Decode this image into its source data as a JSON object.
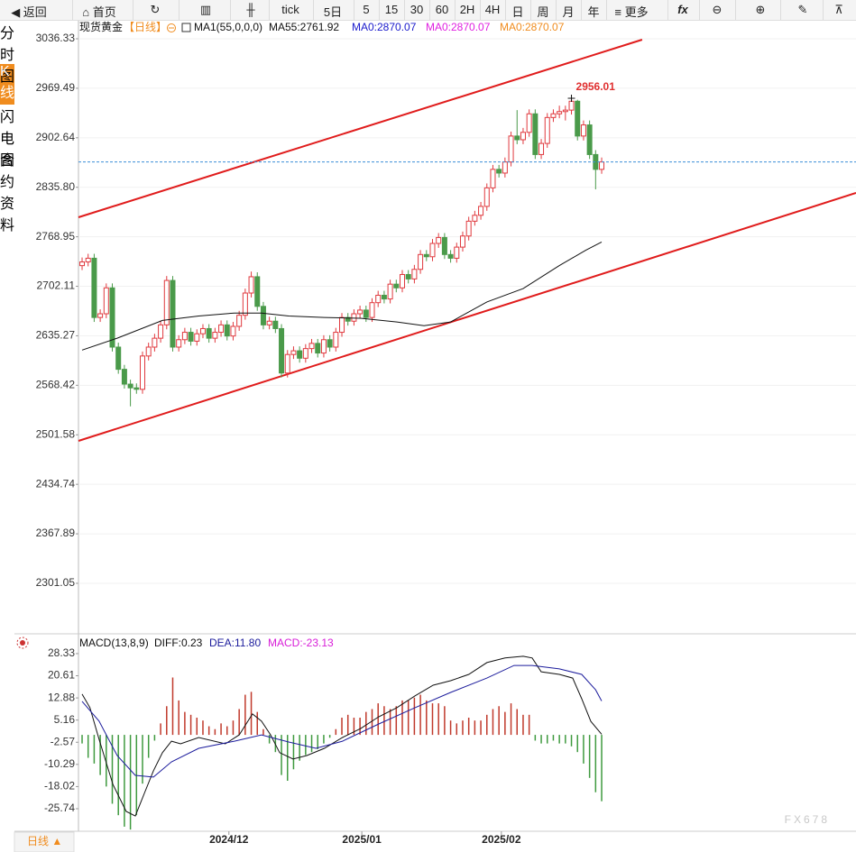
{
  "toolbar": {
    "back": "返回",
    "home": "首页",
    "buttons": [
      "tick",
      "5日",
      "5",
      "15",
      "30",
      "60",
      "2H",
      "4H",
      "日",
      "周",
      "月",
      "年"
    ],
    "more": "更多"
  },
  "sidebar": [
    "分时图",
    "K线图",
    "闪电图",
    "合约资料"
  ],
  "footer": {
    "period": "日线 ▲"
  },
  "watermark": "FX678",
  "chart_data": [
    {
      "type": "candlestick",
      "title": "现货黄金",
      "period": "【日线】",
      "indicator": "MA1(55,0,0,0)",
      "xlim": [
        -0.6,
        128.1
      ],
      "ylim": [
        2236.5,
        3061.9
      ],
      "yticks": [
        3036.33,
        2969.49,
        2902.64,
        {
          "value": 2835.8,
          "label": "2835.80"
        },
        2768.95,
        2702.11,
        2635.27,
        2568.42,
        2501.58,
        2434.74,
        2367.89,
        2301.05
      ],
      "grid": true,
      "up_color": "#e0393e",
      "down_color": "#4a9a4a",
      "last_price_line": true,
      "last_price_color": "#3d8fd8",
      "candles": [
        [
          2730,
          2741,
          2724,
          2735
        ],
        [
          2735,
          2746,
          2729,
          2740
        ],
        [
          2740,
          2746,
          2654,
          2660
        ],
        [
          2660,
          2671,
          2654,
          2665
        ],
        [
          2665,
          2706,
          2659,
          2700
        ],
        [
          2700,
          2706,
          2614,
          2620
        ],
        [
          2620,
          2626,
          2584,
          2590
        ],
        [
          2590,
          2596,
          2564,
          2570
        ],
        [
          2570,
          2576,
          2540,
          2565
        ],
        [
          2565,
          2571,
          2557,
          2563
        ],
        [
          2563,
          2614,
          2557,
          2608
        ],
        [
          2608,
          2626,
          2602,
          2620
        ],
        [
          2620,
          2638,
          2614,
          2632
        ],
        [
          2632,
          2656,
          2626,
          2650
        ],
        [
          2650,
          2716,
          2644,
          2710
        ],
        [
          2710,
          2716,
          2614,
          2620
        ],
        [
          2620,
          2636,
          2614,
          2630
        ],
        [
          2630,
          2646,
          2624,
          2640
        ],
        [
          2640,
          2646,
          2622,
          2628
        ],
        [
          2628,
          2644,
          2622,
          2638
        ],
        [
          2638,
          2651,
          2632,
          2645
        ],
        [
          2645,
          2651,
          2626,
          2632
        ],
        [
          2632,
          2646,
          2626,
          2640
        ],
        [
          2640,
          2656,
          2634,
          2650
        ],
        [
          2650,
          2656,
          2629,
          2635
        ],
        [
          2635,
          2654,
          2629,
          2648
        ],
        [
          2648,
          2669,
          2642,
          2663
        ],
        [
          2663,
          2699,
          2657,
          2693
        ],
        [
          2693,
          2722,
          2687,
          2715
        ],
        [
          2715,
          2721,
          2669,
          2675
        ],
        [
          2675,
          2681,
          2644,
          2650
        ],
        [
          2650,
          2661,
          2644,
          2655
        ],
        [
          2655,
          2661,
          2639,
          2645
        ],
        [
          2645,
          2651,
          2579,
          2585
        ],
        [
          2585,
          2616,
          2579,
          2610
        ],
        [
          2610,
          2621,
          2604,
          2615
        ],
        [
          2615,
          2621,
          2599,
          2605
        ],
        [
          2605,
          2624,
          2599,
          2618
        ],
        [
          2618,
          2631,
          2612,
          2625
        ],
        [
          2625,
          2631,
          2606,
          2612
        ],
        [
          2612,
          2636,
          2606,
          2630
        ],
        [
          2630,
          2636,
          2614,
          2620
        ],
        [
          2620,
          2646,
          2614,
          2640
        ],
        [
          2640,
          2666,
          2634,
          2660
        ],
        [
          2660,
          2666,
          2649,
          2655
        ],
        [
          2655,
          2671,
          2649,
          2665
        ],
        [
          2665,
          2676,
          2659,
          2670
        ],
        [
          2670,
          2676,
          2654,
          2660
        ],
        [
          2660,
          2686,
          2654,
          2680
        ],
        [
          2680,
          2696,
          2674,
          2690
        ],
        [
          2690,
          2696,
          2679,
          2685
        ],
        [
          2685,
          2711,
          2679,
          2705
        ],
        [
          2705,
          2711,
          2694,
          2700
        ],
        [
          2700,
          2724,
          2694,
          2718
        ],
        [
          2718,
          2724,
          2706,
          2712
        ],
        [
          2712,
          2731,
          2706,
          2725
        ],
        [
          2725,
          2751,
          2719,
          2745
        ],
        [
          2745,
          2751,
          2736,
          2742
        ],
        [
          2742,
          2766,
          2736,
          2760
        ],
        [
          2760,
          2774,
          2754,
          2768
        ],
        [
          2768,
          2774,
          2739,
          2745
        ],
        [
          2745,
          2751,
          2734,
          2740
        ],
        [
          2740,
          2761,
          2734,
          2755
        ],
        [
          2755,
          2776,
          2749,
          2770
        ],
        [
          2770,
          2796,
          2764,
          2790
        ],
        [
          2790,
          2804,
          2784,
          2798
        ],
        [
          2798,
          2816,
          2792,
          2810
        ],
        [
          2810,
          2841,
          2804,
          2835
        ],
        [
          2835,
          2866,
          2829,
          2860
        ],
        [
          2860,
          2866,
          2849,
          2855
        ],
        [
          2855,
          2876,
          2849,
          2870
        ],
        [
          2870,
          2911,
          2864,
          2905
        ],
        [
          2905,
          2940,
          2894,
          2900
        ],
        [
          2900,
          2916,
          2894,
          2910
        ],
        [
          2910,
          2941,
          2904,
          2935
        ],
        [
          2935,
          2941,
          2874,
          2880
        ],
        [
          2880,
          2901,
          2874,
          2895
        ],
        [
          2895,
          2936,
          2889,
          2930
        ],
        [
          2930,
          2941,
          2924,
          2935
        ],
        [
          2935,
          2946,
          2929,
          2938
        ],
        [
          2938,
          2946,
          2926,
          2940
        ],
        [
          2940,
          2956.01,
          2934,
          2952
        ],
        [
          2952,
          2954,
          2899,
          2905
        ],
        [
          2905,
          2926,
          2899,
          2920
        ],
        [
          2920,
          2926,
          2874,
          2880
        ],
        [
          2880,
          2886,
          2833,
          2860
        ],
        [
          2860,
          2876,
          2854,
          2870
        ]
      ],
      "series": [
        {
          "name": "MA55:2761.92",
          "color": "#111111",
          "x": [
            0,
            5.8,
            13.3,
            19.3,
            25.2,
            29.7,
            34.2,
            40.1,
            46.1,
            52.1,
            56.6,
            61,
            67,
            73,
            79,
            83.4,
            86
          ],
          "values": [
            2616,
            2632,
            2656,
            2662,
            2666,
            2666,
            2662,
            2660,
            2659,
            2654,
            2649,
            2654,
            2681,
            2699,
            2730,
            2751,
            2761.92
          ]
        }
      ],
      "legend_extra": [
        {
          "label": "MA0:2870.07",
          "color": "#1a1acc"
        },
        {
          "label": "MA0:2870.07",
          "color": "#e020e0"
        },
        {
          "label": "MA0:2870.07",
          "color": "#f08c1e"
        }
      ],
      "trend_lines": [
        {
          "color": "#e01c1c",
          "x": [
            -0.6,
            92.7
          ],
          "values": [
            2795.3,
            3035.1
          ]
        },
        {
          "color": "#e01c1c",
          "x": [
            -0.6,
            128.1
          ],
          "values": [
            2493.4,
            2828.2
          ]
        }
      ],
      "annotations": [
        {
          "x": 81,
          "value": 2956.01,
          "color": "#e03030"
        }
      ]
    },
    {
      "type": "macd",
      "title": "MACD(13,8,9)",
      "xlim": [
        -0.6,
        128.1
      ],
      "ylim": [
        -33.6,
        34.6
      ],
      "xticks": [
        {
          "value": 24.3,
          "label": "2024/12"
        },
        {
          "value": 46.3,
          "label": "2025/01"
        },
        {
          "value": 69.4,
          "label": "2025/02"
        }
      ],
      "yticks": [
        28.33,
        20.61,
        12.88,
        5.16,
        -2.57,
        -10.29,
        -18.02,
        -25.74
      ],
      "series": [
        {
          "name": "DIFF:0.23",
          "color": "#111111",
          "x": [
            0,
            1.3,
            2.8,
            5.1,
            7.3,
            8.8,
            10.3,
            11.8,
            13.3,
            14.8,
            16.3,
            19.3,
            23.7,
            26,
            28.2,
            29.7,
            31.2,
            32.7,
            34.9,
            37.2,
            40.1,
            43.1,
            46.1,
            49.1,
            52.1,
            55.1,
            58.1,
            61,
            64,
            67,
            70,
            73,
            74.5,
            76,
            79,
            81.2,
            82.7,
            84.2,
            86
          ],
          "values": [
            14.2,
            9.5,
            -1.5,
            -17.3,
            -26.7,
            -28.3,
            -20.4,
            -12.5,
            -6.2,
            -2.2,
            -3.1,
            -0.9,
            -3.1,
            0,
            7.3,
            4.8,
            0,
            -6.2,
            -8.4,
            -7.2,
            -4.7,
            -0.9,
            2.2,
            6.3,
            9.5,
            13.6,
            17.3,
            18.9,
            21.1,
            25.2,
            26.8,
            27.4,
            26.8,
            22,
            21.1,
            19.8,
            12.6,
            4.7,
            0.23
          ]
        },
        {
          "name": "DEA:11.80",
          "color": "#1c1c9c",
          "x": [
            0,
            2.8,
            5.8,
            8.8,
            11.8,
            14.8,
            19.3,
            25.2,
            29.7,
            34.2,
            38.7,
            43.1,
            49.1,
            55.1,
            61,
            67,
            71.5,
            74.5,
            79,
            82.7,
            85,
            86
          ],
          "values": [
            11.7,
            4.8,
            -7.2,
            -14.1,
            -14.7,
            -9.4,
            -4.7,
            -2.2,
            0,
            -2.5,
            -4.7,
            -2.2,
            3.8,
            9.5,
            14.8,
            19.8,
            24.2,
            24.2,
            23,
            21.1,
            15.7,
            11.8
          ]
        }
      ],
      "histogram": {
        "name": "MACD:-23.13",
        "color": "#d81ed8",
        "up_color": "#c0392b",
        "down_color": "#3f9a3f",
        "values": [
          -3,
          -8,
          -10,
          -14,
          -18,
          -24,
          -28,
          -32,
          -33,
          -28,
          -17,
          -8,
          -2,
          4,
          10,
          20,
          12,
          8,
          7,
          6,
          5,
          3,
          2,
          4,
          3,
          5,
          9,
          14,
          15,
          8,
          2,
          -3,
          -6,
          -14,
          -16,
          -12,
          -9,
          -7,
          -6,
          -5,
          -3,
          -1,
          2,
          6,
          7,
          6,
          6,
          8,
          9,
          11,
          10,
          9,
          10,
          12,
          12,
          13,
          14,
          12,
          11,
          11,
          10,
          5,
          4,
          5,
          6,
          5,
          5,
          7,
          9,
          10,
          8,
          11,
          9,
          7,
          7,
          -2,
          -3,
          -3,
          -2,
          -3,
          -3,
          -4,
          -6,
          -10,
          -15,
          -20,
          -23.13
        ]
      }
    }
  ]
}
